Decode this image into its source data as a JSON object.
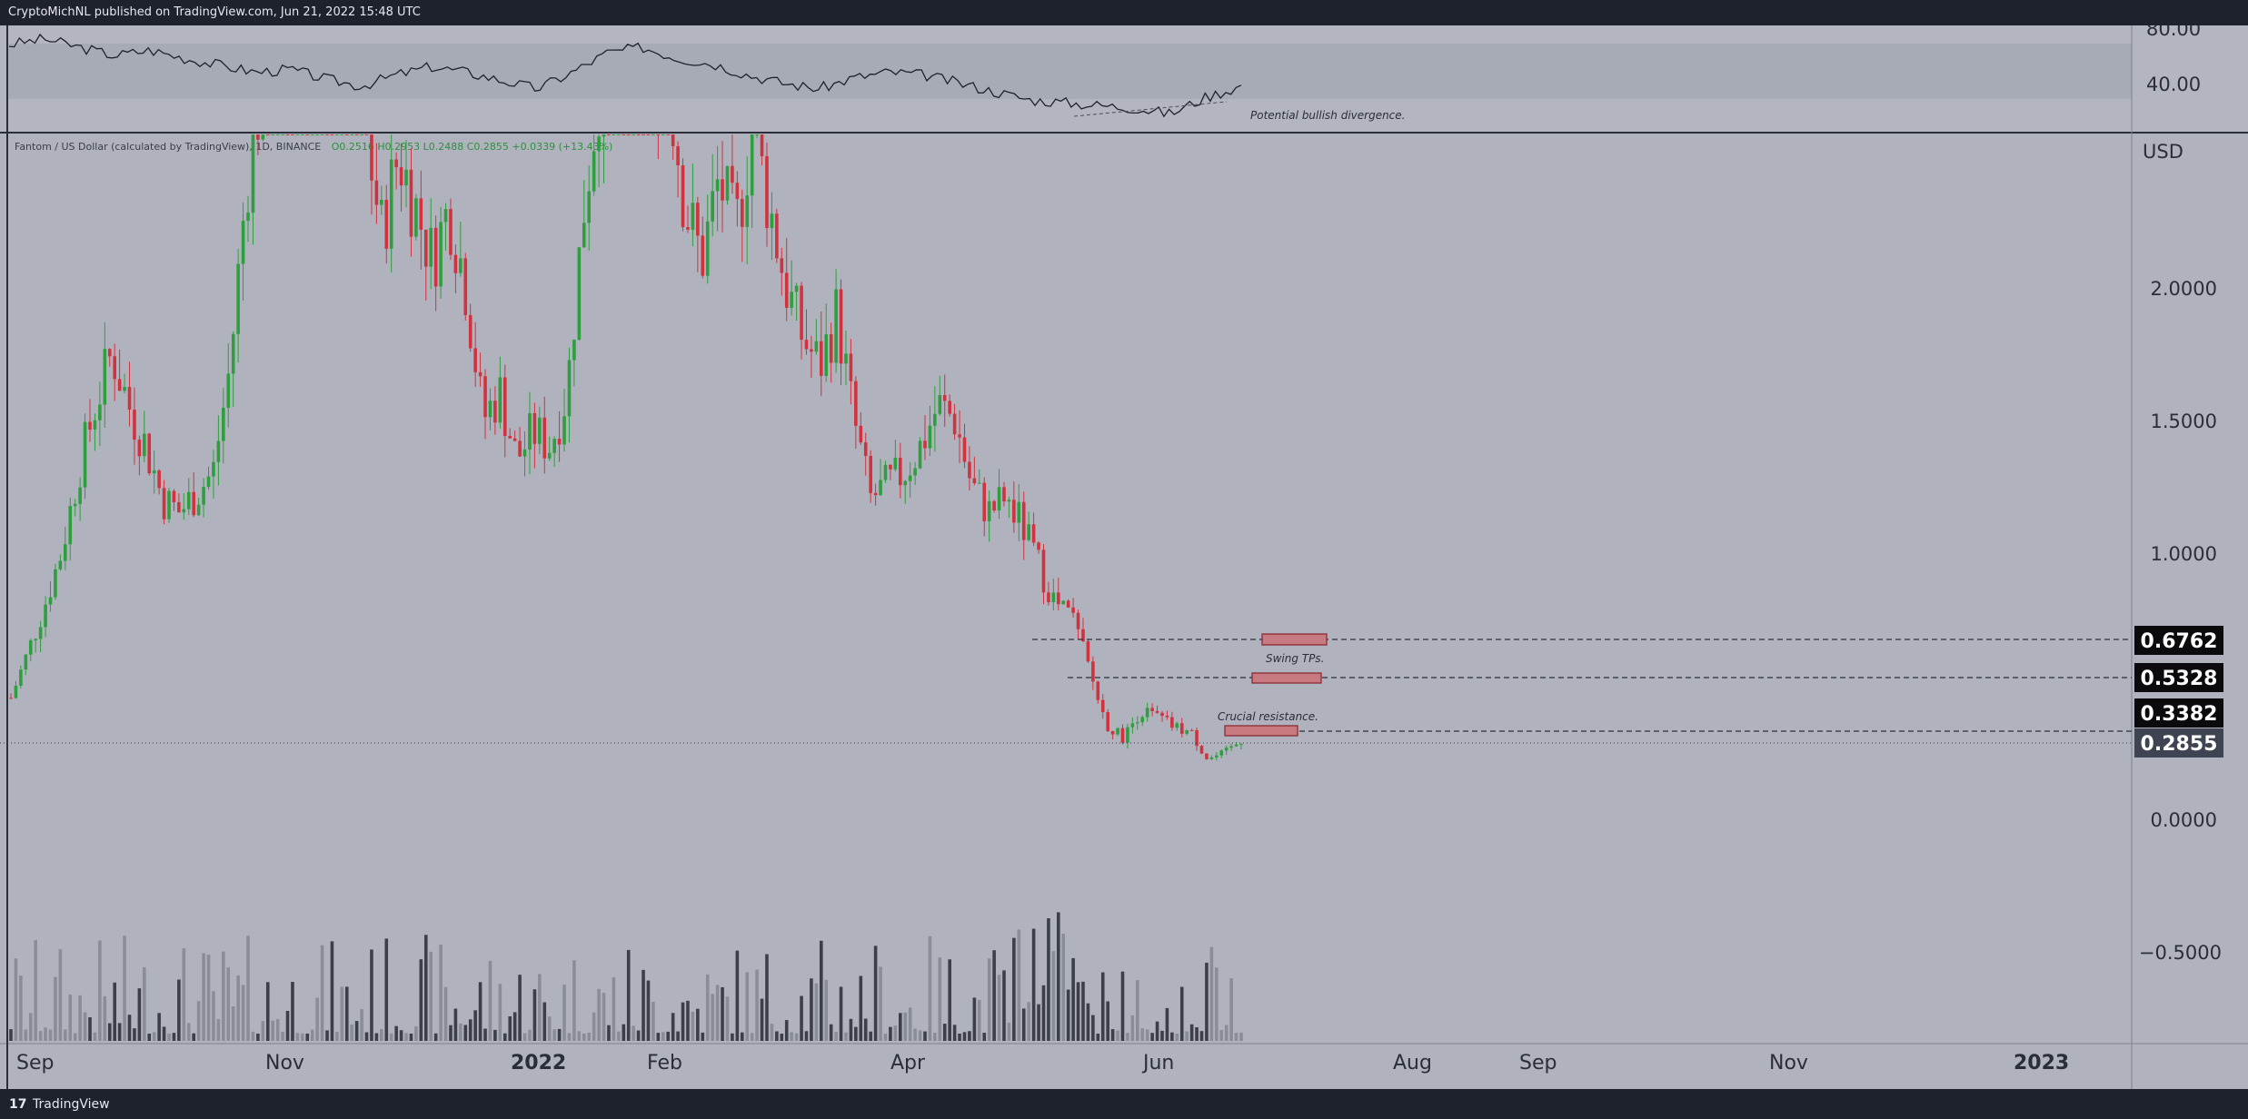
{
  "header": {
    "publisher_line": "CryptoMichNL published on TradingView.com, Jun 21, 2022 15:48 UTC"
  },
  "footer": {
    "logo_glyph": "17",
    "brand": "TradingView"
  },
  "legend": {
    "symbol": "Fantom / US Dollar (calculated by TradingView), 1D, BINANCE",
    "ohlc": "O0.2516  H0.2953  L0.2488  C0.2855  +0.0339 (+13.43%)"
  },
  "chart_data": {
    "type": "candlestick",
    "currency_label": "USD",
    "x_axis_labels": [
      "Sep",
      "Nov",
      "2022",
      "Feb",
      "Apr",
      "Jun",
      "Aug",
      "Sep",
      "Nov",
      "2023"
    ],
    "y_axis_ticks": [
      2.0,
      1.5,
      1.0,
      0.0,
      -0.5
    ],
    "y_axis_tick_labels": [
      "2.0000",
      "1.5000",
      "1.0000",
      "0.0000",
      "−0.5000"
    ],
    "price_levels": [
      {
        "value": 0.6762,
        "label": "0.6762",
        "style": "dashed",
        "badge": "black"
      },
      {
        "value": 0.5328,
        "label": "0.5328",
        "style": "dashed",
        "badge": "black"
      },
      {
        "value": 0.3382,
        "label": "0.3382",
        "style": "dashed",
        "badge": "black"
      },
      {
        "value": 0.2855,
        "label": "0.2855",
        "style": "dotted",
        "badge": "slate"
      }
    ],
    "annotations": {
      "swing_tps": "Swing TPs.",
      "crucial_resistance": "Crucial resistance.",
      "divergence": "Potential bullish divergence."
    },
    "indicator": {
      "name": "RSI",
      "ticks": [
        "80.00",
        "40.00"
      ]
    },
    "price_path_closes": [
      0.45,
      0.62,
      0.8,
      1.0,
      1.3,
      1.55,
      1.75,
      1.55,
      1.4,
      1.2,
      1.15,
      1.22,
      1.3,
      1.7,
      2.4,
      2.8,
      3.0,
      3.1,
      3.2,
      3.05,
      2.9,
      2.6,
      2.2,
      2.5,
      2.3,
      2.1,
      2.3,
      2.0,
      1.5,
      1.6,
      1.35,
      1.45,
      1.4,
      1.6,
      2.3,
      2.8,
      3.1,
      3.3,
      2.9,
      2.8,
      2.3,
      2.1,
      2.4,
      2.2,
      2.6,
      2.3,
      2.0,
      1.8,
      1.7,
      1.9,
      1.5,
      1.2,
      1.25,
      1.3,
      1.4,
      1.55,
      1.5,
      1.25,
      1.15,
      1.2,
      1.1,
      0.95,
      0.8,
      0.75,
      0.55,
      0.35,
      0.3,
      0.4,
      0.38,
      0.34,
      0.32,
      0.22,
      0.24,
      0.29
    ],
    "rsi_path": [
      80,
      84,
      78,
      72,
      76,
      70,
      65,
      60,
      62,
      55,
      50,
      58,
      64,
      60,
      54,
      48,
      60,
      74,
      78,
      70,
      66,
      58,
      52,
      48,
      56,
      60,
      58,
      52,
      46,
      40,
      38,
      36,
      34,
      30,
      42,
      50
    ]
  }
}
